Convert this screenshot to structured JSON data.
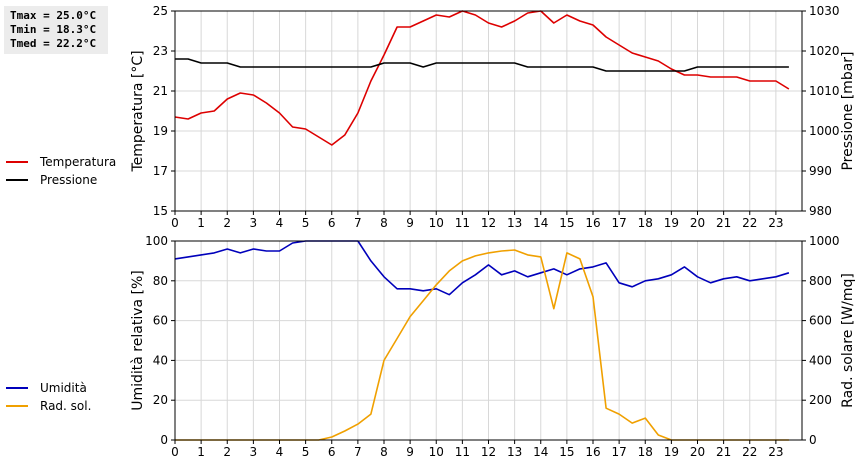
{
  "stats": {
    "tmax": "Tmax = 25.0°C",
    "tmin": "Tmin = 18.3°C",
    "tmed": "Tmed = 22.2°C"
  },
  "colors": {
    "temperatura": "#dd0000",
    "pressione": "#000000",
    "umidita": "#0000bb",
    "radiazione": "#f0a000",
    "grid": "#d8d8d8"
  },
  "chart_data": [
    {
      "type": "line",
      "xlabel": "",
      "ylabel": "Temperatura [°C]",
      "y2label": "Pressione [mbar]",
      "xlim": [
        0,
        24
      ],
      "ylim": [
        15,
        25
      ],
      "y2lim": [
        980,
        1030
      ],
      "xticks": [
        "0",
        "1",
        "2",
        "3",
        "4",
        "5",
        "6",
        "7",
        "8",
        "9",
        "10",
        "11",
        "12",
        "13",
        "14",
        "15",
        "16",
        "17",
        "18",
        "19",
        "20",
        "21",
        "22",
        "23"
      ],
      "yticks": [
        "15",
        "17",
        "19",
        "21",
        "23",
        "25"
      ],
      "y2ticks": [
        "980",
        "990",
        "1000",
        "1010",
        "1020",
        "1030"
      ],
      "legend": "left",
      "grid": true,
      "series": [
        {
          "name": "Temperatura",
          "axis": "left",
          "color_key": "temperatura",
          "x": [
            0,
            0.5,
            1,
            1.5,
            2,
            2.5,
            3,
            3.5,
            4,
            4.5,
            5,
            5.5,
            6,
            6.5,
            7,
            7.5,
            8,
            8.5,
            9,
            9.5,
            10,
            10.5,
            11,
            11.5,
            12,
            12.5,
            13,
            13.5,
            14,
            14.5,
            15,
            15.5,
            16,
            16.5,
            17,
            17.5,
            18,
            18.5,
            19,
            19.5,
            20,
            20.5,
            21,
            21.5,
            22,
            22.5,
            23,
            23.5
          ],
          "y": [
            19.7,
            19.6,
            19.9,
            20.0,
            20.6,
            20.9,
            20.8,
            20.4,
            19.9,
            19.2,
            19.1,
            18.7,
            18.3,
            18.8,
            19.9,
            21.5,
            22.8,
            24.2,
            24.2,
            24.5,
            24.8,
            24.7,
            25.0,
            24.8,
            24.4,
            24.2,
            24.5,
            24.9,
            25.0,
            24.4,
            24.8,
            24.5,
            24.3,
            23.7,
            23.3,
            22.9,
            22.7,
            22.5,
            22.1,
            21.8,
            21.8,
            21.7,
            21.7,
            21.7,
            21.5,
            21.5,
            21.5,
            21.1
          ]
        },
        {
          "name": "Pressione",
          "axis": "right",
          "color_key": "pressione",
          "x": [
            0,
            0.5,
            1,
            1.5,
            2,
            2.5,
            3,
            3.5,
            4,
            4.5,
            5,
            5.5,
            6,
            6.5,
            7,
            7.5,
            8,
            8.5,
            9,
            9.5,
            10,
            10.5,
            11,
            11.5,
            12,
            12.5,
            13,
            13.5,
            14,
            14.5,
            15,
            15.5,
            16,
            16.5,
            17,
            17.5,
            18,
            18.5,
            19,
            19.5,
            20,
            20.5,
            21,
            21.5,
            22,
            22.5,
            23,
            23.5
          ],
          "y": [
            1018,
            1018,
            1017,
            1017,
            1017,
            1016,
            1016,
            1016,
            1016,
            1016,
            1016,
            1016,
            1016,
            1016,
            1016,
            1016,
            1017,
            1017,
            1017,
            1016,
            1017,
            1017,
            1017,
            1017,
            1017,
            1017,
            1017,
            1016,
            1016,
            1016,
            1016,
            1016,
            1016,
            1015,
            1015,
            1015,
            1015,
            1015,
            1015,
            1015,
            1016,
            1016,
            1016,
            1016,
            1016,
            1016,
            1016,
            1016
          ]
        }
      ]
    },
    {
      "type": "line",
      "xlabel": "",
      "ylabel": "Umidità relativa [%]",
      "y2label": "Rad. solare [W/mq]",
      "xlim": [
        0,
        24
      ],
      "ylim": [
        0,
        100
      ],
      "y2lim": [
        0,
        1000
      ],
      "xticks": [
        "0",
        "1",
        "2",
        "3",
        "4",
        "5",
        "6",
        "7",
        "8",
        "9",
        "10",
        "11",
        "12",
        "13",
        "14",
        "15",
        "16",
        "17",
        "18",
        "19",
        "20",
        "21",
        "22",
        "23"
      ],
      "yticks": [
        "0",
        "20",
        "40",
        "60",
        "80",
        "100"
      ],
      "y2ticks": [
        "0",
        "200",
        "400",
        "600",
        "800",
        "1000"
      ],
      "legend": "left",
      "grid": true,
      "series": [
        {
          "name": "Umidità",
          "axis": "left",
          "color_key": "umidita",
          "x": [
            0,
            0.5,
            1,
            1.5,
            2,
            2.5,
            3,
            3.5,
            4,
            4.5,
            5,
            5.5,
            6,
            6.5,
            7,
            7.5,
            8,
            8.5,
            9,
            9.5,
            10,
            10.5,
            11,
            11.5,
            12,
            12.5,
            13,
            13.5,
            14,
            14.5,
            15,
            15.5,
            16,
            16.5,
            17,
            17.5,
            18,
            18.5,
            19,
            19.5,
            20,
            20.5,
            21,
            21.5,
            22,
            22.5,
            23,
            23.5
          ],
          "y": [
            91,
            92,
            93,
            94,
            96,
            94,
            96,
            95,
            95,
            99,
            100,
            100,
            100,
            100,
            100,
            90,
            82,
            76,
            76,
            75,
            76,
            73,
            79,
            83,
            88,
            83,
            85,
            82,
            84,
            86,
            83,
            86,
            87,
            89,
            79,
            77,
            80,
            81,
            83,
            87,
            82,
            79,
            81,
            82,
            80,
            81,
            82,
            84
          ]
        },
        {
          "name": "Rad. sol.",
          "axis": "right",
          "color_key": "radiazione",
          "x": [
            0,
            0.5,
            1,
            1.5,
            2,
            2.5,
            3,
            3.5,
            4,
            4.5,
            5,
            5.5,
            6,
            6.5,
            7,
            7.5,
            8,
            8.5,
            9,
            9.5,
            10,
            10.5,
            11,
            11.5,
            12,
            12.5,
            13,
            13.5,
            14,
            14.5,
            15,
            15.5,
            16,
            16.5,
            17,
            17.5,
            18,
            18.5,
            19,
            19.5,
            20,
            20.5,
            21,
            21.5,
            22,
            22.5,
            23,
            23.5
          ],
          "y": [
            0,
            0,
            0,
            0,
            0,
            0,
            0,
            0,
            0,
            0,
            0,
            0,
            15,
            45,
            80,
            130,
            400,
            510,
            620,
            700,
            780,
            850,
            900,
            925,
            940,
            950,
            955,
            930,
            920,
            660,
            940,
            910,
            720,
            160,
            130,
            85,
            110,
            25,
            0,
            0,
            0,
            0,
            0,
            0,
            0,
            0,
            0,
            0
          ]
        }
      ]
    }
  ]
}
